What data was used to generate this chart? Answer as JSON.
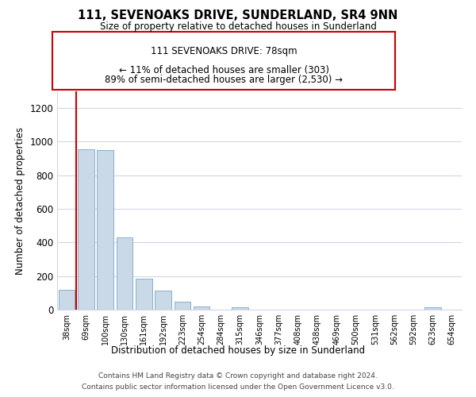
{
  "title": "111, SEVENOAKS DRIVE, SUNDERLAND, SR4 9NN",
  "subtitle": "Size of property relative to detached houses in Sunderland",
  "xlabel": "Distribution of detached houses by size in Sunderland",
  "ylabel": "Number of detached properties",
  "bar_labels": [
    "38sqm",
    "69sqm",
    "100sqm",
    "130sqm",
    "161sqm",
    "192sqm",
    "223sqm",
    "254sqm",
    "284sqm",
    "315sqm",
    "346sqm",
    "377sqm",
    "408sqm",
    "438sqm",
    "469sqm",
    "500sqm",
    "531sqm",
    "562sqm",
    "592sqm",
    "623sqm",
    "654sqm"
  ],
  "bar_values": [
    120,
    955,
    950,
    430,
    185,
    113,
    47,
    20,
    0,
    15,
    0,
    0,
    0,
    0,
    0,
    0,
    0,
    0,
    0,
    12,
    0
  ],
  "bar_color": "#cad9e8",
  "bar_edge_color": "#8aafc8",
  "vline_x": 0.5,
  "vline_color": "#cc0000",
  "ylim": [
    0,
    1300
  ],
  "yticks": [
    0,
    200,
    400,
    600,
    800,
    1000,
    1200
  ],
  "annotation_title": "111 SEVENOAKS DRIVE: 78sqm",
  "annotation_line1": "← 11% of detached houses are smaller (303)",
  "annotation_line2": "89% of semi-detached houses are larger (2,530) →",
  "annotation_box_color": "#ffffff",
  "annotation_box_edge": "#cc0000",
  "footer1": "Contains HM Land Registry data © Crown copyright and database right 2024.",
  "footer2": "Contains public sector information licensed under the Open Government Licence v3.0.",
  "background_color": "#ffffff",
  "grid_color": "#d0d8e8"
}
